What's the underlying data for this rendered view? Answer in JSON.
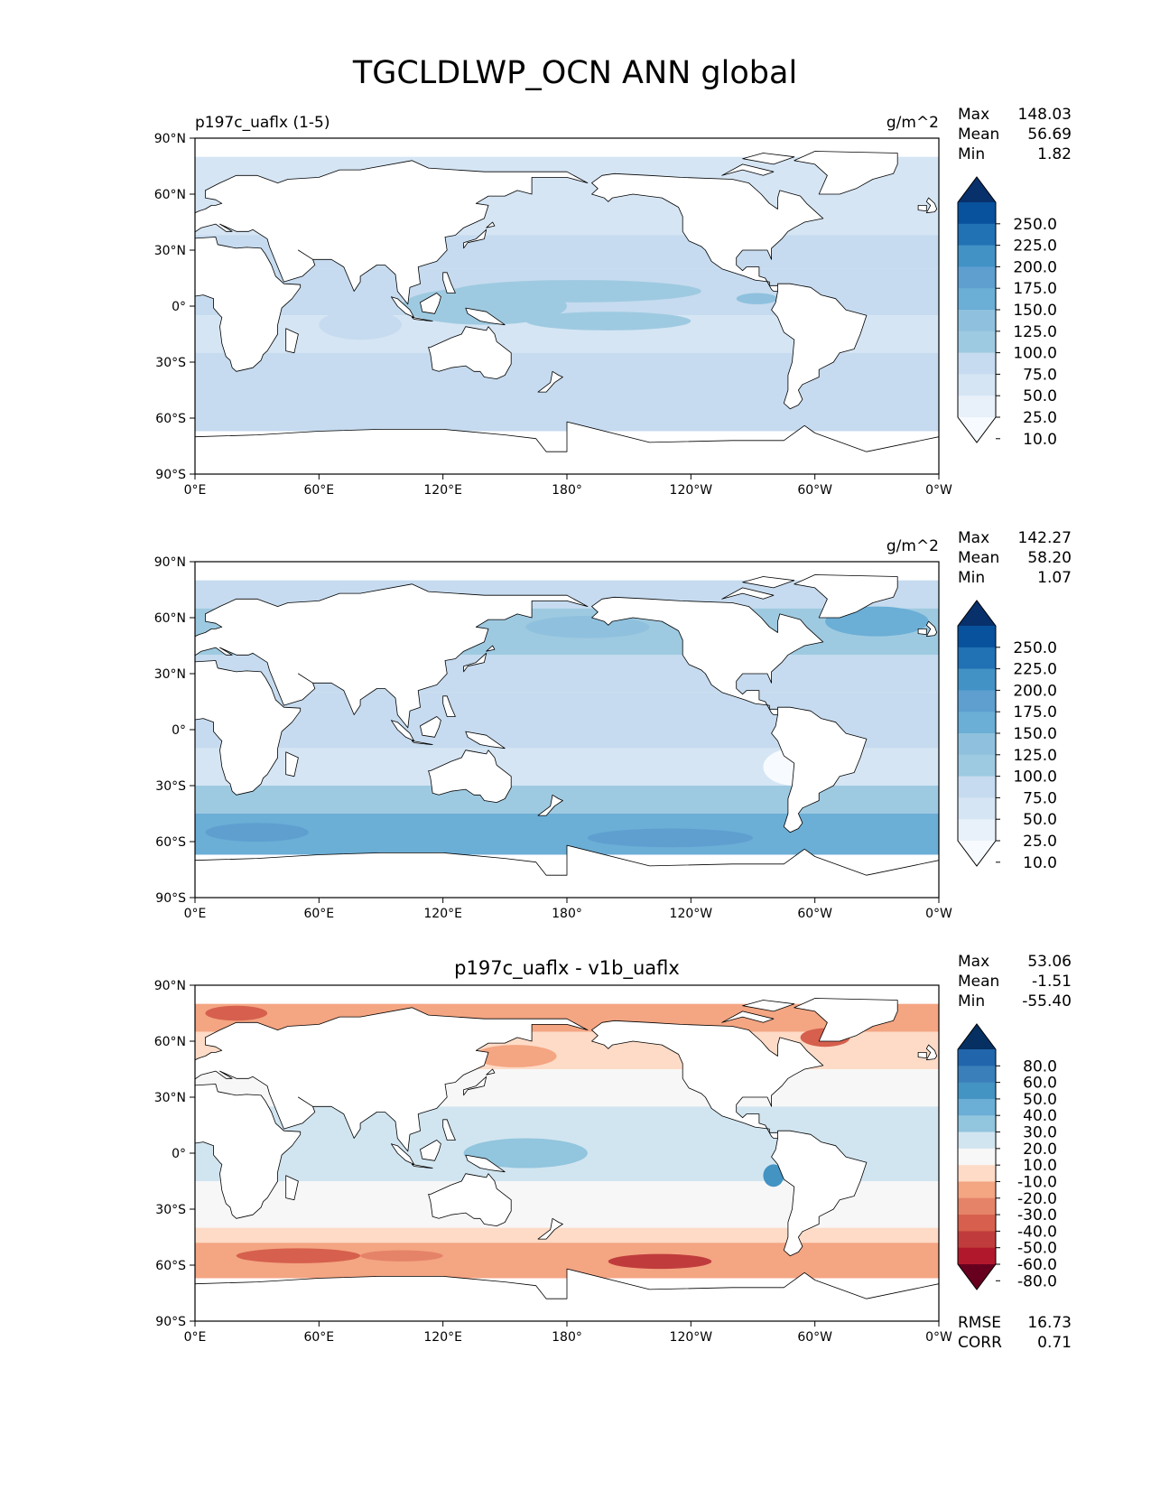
{
  "title": "TGCLDLWP_OCN ANN global",
  "land_color": "#ffffff",
  "ocean_missing_color": "#ffffff",
  "chart_data": [
    {
      "type": "heatmap",
      "left_title": "p197c_uaflx (1-5)",
      "center_title": "",
      "units": "g/m^2",
      "stats": [
        {
          "label": "Max",
          "value": "148.03"
        },
        {
          "label": "Mean",
          "value": "56.69"
        },
        {
          "label": "Min",
          "value": "1.82"
        }
      ],
      "footer_stats": [],
      "xlim": [
        0,
        360
      ],
      "ylim": [
        -90,
        90
      ],
      "x_ticks": [
        "0°E",
        "60°E",
        "120°E",
        "180°",
        "120°W",
        "60°W",
        "0°W"
      ],
      "y_ticks": [
        "90°N",
        "60°N",
        "30°N",
        "0°",
        "30°S",
        "60°S",
        "90°S"
      ],
      "colorbar": {
        "labels": [
          "250.0",
          "225.0",
          "200.0",
          "175.0",
          "150.0",
          "125.0",
          "100.0",
          "75.0",
          "50.0",
          "25.0",
          "10.0"
        ],
        "colors": [
          "#08306b",
          "#08519c",
          "#2171b5",
          "#4292c6",
          "#5e9fd0",
          "#6baed6",
          "#8fc1de",
          "#9ecae1",
          "#c6dbef",
          "#d5e5f4",
          "#e8f0f9",
          "#f7fbff"
        ],
        "extend": "both"
      },
      "bands": [
        {
          "lat_min": 60,
          "lat_max": 80,
          "color": "#d5e5f4"
        },
        {
          "lat_min": 38,
          "lat_max": 60,
          "color": "#d5e5f4"
        },
        {
          "lat_min": 20,
          "lat_max": 38,
          "color": "#c6dbef"
        },
        {
          "lat_min": -5,
          "lat_max": 20,
          "color": "#c6dbef"
        },
        {
          "lat_min": -25,
          "lat_max": -5,
          "color": "#d5e5f4"
        },
        {
          "lat_min": -60,
          "lat_max": -25,
          "color": "#c6dbef"
        },
        {
          "lat_min": -67,
          "lat_max": -60,
          "color": "#c6dbef"
        }
      ],
      "patches": [
        {
          "lon": 185,
          "lat": 8,
          "rlon": 60,
          "rlat": 6,
          "color": "#9ecae1"
        },
        {
          "lon": 140,
          "lat": 0,
          "rlon": 40,
          "rlat": 10,
          "color": "#9ecae1"
        },
        {
          "lon": 200,
          "lat": -8,
          "rlon": 40,
          "rlat": 5,
          "color": "#9ecae1"
        },
        {
          "lon": 272,
          "lat": 4,
          "rlon": 10,
          "rlat": 3,
          "color": "#8fc1de"
        },
        {
          "lon": 80,
          "lat": -10,
          "rlon": 20,
          "rlat": 8,
          "color": "#c6dbef"
        }
      ]
    },
    {
      "type": "heatmap",
      "left_title": "",
      "center_title": "",
      "units": "g/m^2",
      "stats": [
        {
          "label": "Max",
          "value": "142.27"
        },
        {
          "label": "Mean",
          "value": "58.20"
        },
        {
          "label": "Min",
          "value": "1.07"
        }
      ],
      "footer_stats": [],
      "xlim": [
        0,
        360
      ],
      "ylim": [
        -90,
        90
      ],
      "x_ticks": [
        "0°E",
        "60°E",
        "120°E",
        "180°",
        "120°W",
        "60°W",
        "0°W"
      ],
      "y_ticks": [
        "90°N",
        "60°N",
        "30°N",
        "0°",
        "30°S",
        "60°S",
        "90°S"
      ],
      "colorbar": {
        "labels": [
          "250.0",
          "225.0",
          "200.0",
          "175.0",
          "150.0",
          "125.0",
          "100.0",
          "75.0",
          "50.0",
          "25.0",
          "10.0"
        ],
        "colors": [
          "#08306b",
          "#08519c",
          "#2171b5",
          "#4292c6",
          "#5e9fd0",
          "#6baed6",
          "#8fc1de",
          "#9ecae1",
          "#c6dbef",
          "#d5e5f4",
          "#e8f0f9",
          "#f7fbff"
        ],
        "extend": "both"
      },
      "bands": [
        {
          "lat_min": 65,
          "lat_max": 80,
          "color": "#c6dbef"
        },
        {
          "lat_min": 40,
          "lat_max": 65,
          "color": "#9ecae1"
        },
        {
          "lat_min": 20,
          "lat_max": 40,
          "color": "#c6dbef"
        },
        {
          "lat_min": -10,
          "lat_max": 20,
          "color": "#c6dbef"
        },
        {
          "lat_min": -30,
          "lat_max": -10,
          "color": "#d5e5f4"
        },
        {
          "lat_min": -45,
          "lat_max": -30,
          "color": "#9ecae1"
        },
        {
          "lat_min": -67,
          "lat_max": -45,
          "color": "#6baed6"
        }
      ],
      "patches": [
        {
          "lon": 330,
          "lat": 58,
          "rlon": 25,
          "rlat": 8,
          "color": "#6baed6"
        },
        {
          "lon": 190,
          "lat": 55,
          "rlon": 30,
          "rlat": 6,
          "color": "#8fc1de"
        },
        {
          "lon": 30,
          "lat": -55,
          "rlon": 25,
          "rlat": 5,
          "color": "#5e9fd0"
        },
        {
          "lon": 230,
          "lat": -58,
          "rlon": 40,
          "rlat": 5,
          "color": "#5e9fd0"
        },
        {
          "lon": 290,
          "lat": -20,
          "rlon": 15,
          "rlat": 10,
          "color": "#f7fbff"
        }
      ]
    },
    {
      "type": "heatmap",
      "left_title": "",
      "center_title": "p197c_uaflx - v1b_uaflx",
      "units": "",
      "stats": [
        {
          "label": "Max",
          "value": "53.06"
        },
        {
          "label": "Mean",
          "value": "-1.51"
        },
        {
          "label": "Min",
          "value": "-55.40"
        }
      ],
      "footer_stats": [
        {
          "label": "RMSE",
          "value": "16.73"
        },
        {
          "label": "CORR",
          "value": "0.71"
        }
      ],
      "xlim": [
        0,
        360
      ],
      "ylim": [
        -90,
        90
      ],
      "x_ticks": [
        "0°E",
        "60°E",
        "120°E",
        "180°",
        "120°W",
        "60°W",
        "0°W"
      ],
      "y_ticks": [
        "90°N",
        "60°N",
        "30°N",
        "0°",
        "30°S",
        "60°S",
        "90°S"
      ],
      "colorbar": {
        "labels": [
          "80.0",
          "60.0",
          "50.0",
          "40.0",
          "30.0",
          "20.0",
          "10.0",
          "-10.0",
          "-20.0",
          "-30.0",
          "-40.0",
          "-50.0",
          "-60.0",
          "-80.0"
        ],
        "colors": [
          "#053061",
          "#2166ac",
          "#3a7fba",
          "#4393c3",
          "#6baed6",
          "#92c5de",
          "#d1e5f0",
          "#f7f7f7",
          "#fddbc7",
          "#f4a582",
          "#e58368",
          "#d6604d",
          "#c03c3c",
          "#b2182b",
          "#67001f"
        ],
        "extend": "both"
      },
      "bands": [
        {
          "lat_min": 65,
          "lat_max": 80,
          "color": "#f4a582"
        },
        {
          "lat_min": 45,
          "lat_max": 65,
          "color": "#fddbc7"
        },
        {
          "lat_min": 25,
          "lat_max": 45,
          "color": "#f7f7f7"
        },
        {
          "lat_min": -15,
          "lat_max": 25,
          "color": "#d1e5f0"
        },
        {
          "lat_min": -40,
          "lat_max": -15,
          "color": "#f7f7f7"
        },
        {
          "lat_min": -48,
          "lat_max": -40,
          "color": "#fddbc7"
        },
        {
          "lat_min": -67,
          "lat_max": -48,
          "color": "#f4a582"
        }
      ],
      "patches": [
        {
          "lon": 160,
          "lat": 0,
          "rlon": 30,
          "rlat": 8,
          "color": "#92c5de"
        },
        {
          "lon": 280,
          "lat": -12,
          "rlon": 5,
          "rlat": 6,
          "color": "#4393c3"
        },
        {
          "lon": 20,
          "lat": 75,
          "rlon": 15,
          "rlat": 4,
          "color": "#d6604d"
        },
        {
          "lon": 305,
          "lat": 62,
          "rlon": 12,
          "rlat": 5,
          "color": "#d6604d"
        },
        {
          "lon": 155,
          "lat": 52,
          "rlon": 20,
          "rlat": 6,
          "color": "#f4a582"
        },
        {
          "lon": 50,
          "lat": -55,
          "rlon": 30,
          "rlat": 4,
          "color": "#d6604d"
        },
        {
          "lon": 225,
          "lat": -58,
          "rlon": 25,
          "rlat": 4,
          "color": "#c03c3c"
        },
        {
          "lon": 100,
          "lat": -55,
          "rlon": 20,
          "rlat": 3,
          "color": "#e58368"
        }
      ]
    }
  ]
}
